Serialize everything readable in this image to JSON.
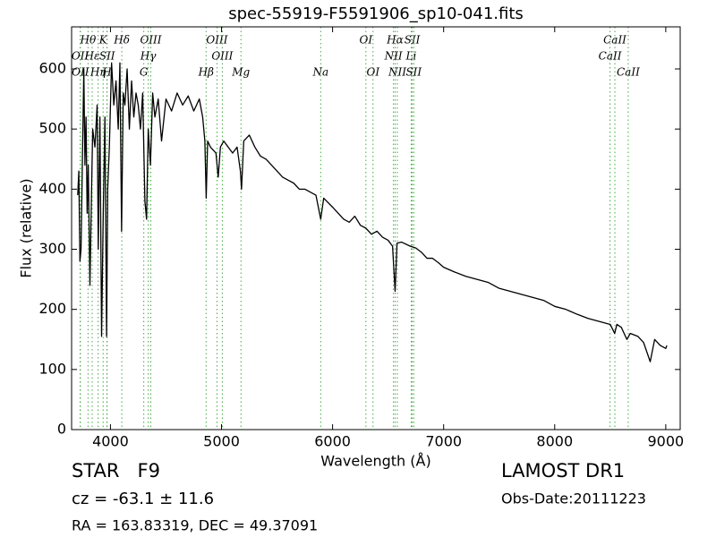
{
  "chart_data": {
    "type": "line",
    "title": "spec-55919-F5591906_sp10-041.fits",
    "xlabel": "Wavelength (Å)",
    "ylabel": "Flux (relative)",
    "xlim": [
      3650,
      9130
    ],
    "ylim": [
      0,
      670
    ],
    "xticks": [
      4000,
      5000,
      6000,
      7000,
      8000,
      9000
    ],
    "yticks": [
      0,
      100,
      200,
      300,
      400,
      500,
      600
    ],
    "x": [
      3705,
      3715,
      3725,
      3735,
      3745,
      3760,
      3770,
      3780,
      3790,
      3800,
      3815,
      3830,
      3840,
      3860,
      3880,
      3890,
      3905,
      3920,
      3935,
      3950,
      3965,
      3975,
      3990,
      4010,
      4030,
      4050,
      4070,
      4085,
      4100,
      4115,
      4130,
      4150,
      4170,
      4190,
      4210,
      4230,
      4250,
      4270,
      4290,
      4310,
      4325,
      4340,
      4360,
      4380,
      4400,
      4430,
      4460,
      4500,
      4550,
      4600,
      4650,
      4700,
      4750,
      4800,
      4830,
      4850,
      4862,
      4875,
      4900,
      4950,
      4970,
      4990,
      5020,
      5060,
      5100,
      5140,
      5170,
      5180,
      5200,
      5250,
      5300,
      5350,
      5400,
      5450,
      5500,
      5550,
      5600,
      5650,
      5700,
      5750,
      5800,
      5850,
      5893,
      5920,
      6000,
      6050,
      6100,
      6150,
      6200,
      6250,
      6300,
      6350,
      6400,
      6450,
      6500,
      6540,
      6563,
      6580,
      6620,
      6700,
      6750,
      6800,
      6850,
      6900,
      6950,
      7000,
      7100,
      7200,
      7300,
      7400,
      7500,
      7600,
      7700,
      7800,
      7900,
      8000,
      8100,
      8200,
      8300,
      8400,
      8500,
      8540,
      8560,
      8600,
      8650,
      8680,
      8750,
      8800,
      8860,
      8900,
      8950,
      9000,
      9010
    ],
    "series": [
      {
        "color": "#000000",
        "values": [
          390,
          430,
          280,
          300,
          420,
          600,
          440,
          520,
          360,
          440,
          240,
          400,
          500,
          470,
          540,
          300,
          520,
          155,
          360,
          520,
          155,
          400,
          470,
          610,
          540,
          580,
          500,
          610,
          330,
          560,
          540,
          600,
          500,
          580,
          520,
          560,
          540,
          500,
          560,
          380,
          350,
          500,
          440,
          560,
          520,
          550,
          480,
          550,
          530,
          560,
          540,
          555,
          530,
          550,
          520,
          480,
          385,
          480,
          470,
          460,
          420,
          470,
          480,
          470,
          460,
          470,
          430,
          400,
          480,
          490,
          470,
          455,
          450,
          440,
          430,
          420,
          415,
          410,
          400,
          400,
          395,
          390,
          350,
          385,
          370,
          360,
          350,
          345,
          355,
          340,
          335,
          325,
          330,
          320,
          315,
          305,
          230,
          310,
          312,
          305,
          302,
          295,
          285,
          285,
          278,
          270,
          262,
          255,
          250,
          245,
          235,
          230,
          225,
          220,
          215,
          205,
          200,
          192,
          185,
          180,
          175,
          160,
          175,
          170,
          150,
          160,
          155,
          145,
          113,
          150,
          140,
          135,
          140
        ]
      }
    ],
    "line_color": "#44aa44",
    "line_rows": [
      [
        {
          "label": "Hθ",
          "x": 3798
        },
        {
          "label": "K",
          "x": 3934
        },
        {
          "label": "Hδ",
          "x": 4102
        },
        {
          "label": "OIII",
          "x": 4363
        },
        {
          "label": "OIII",
          "x": 4959
        },
        {
          "label": "OI",
          "x": 6300
        },
        {
          "label": "Hα",
          "x": 6563
        },
        {
          "label": "SII",
          "x": 6717
        },
        {
          "label": "CaII",
          "x": 8542
        }
      ],
      [
        {
          "label": "OII",
          "x": 3727
        },
        {
          "label": "Hε",
          "x": 3835
        },
        {
          "label": "SII",
          "x": 3970
        },
        {
          "label": "Hγ",
          "x": 4340
        },
        {
          "label": "OIII",
          "x": 5007
        },
        {
          "label": "NII",
          "x": 6548
        },
        {
          "label": "Li",
          "x": 6708
        },
        {
          "label": "CaII",
          "x": 8498
        }
      ],
      [
        {
          "label": "OII",
          "x": 3729
        },
        {
          "label": "Hη",
          "x": 3889
        },
        {
          "label": "H",
          "x": 3968
        },
        {
          "label": "G",
          "x": 4300
        },
        {
          "label": "Hβ",
          "x": 4861
        },
        {
          "label": "Mg",
          "x": 5175
        },
        {
          "label": "Na",
          "x": 5893
        },
        {
          "label": "OI",
          "x": 6364
        },
        {
          "label": "NII",
          "x": 6583
        },
        {
          "label": "SII",
          "x": 6731
        },
        {
          "label": "CaII",
          "x": 8662
        }
      ]
    ],
    "footer": {
      "class": "STAR   F9",
      "cz": "cz = -63.1 ± 11.6",
      "coords": "RA = 163.83319, DEC = 49.37091",
      "survey": "LAMOST DR1",
      "date": "Obs-Date:20111223"
    }
  }
}
